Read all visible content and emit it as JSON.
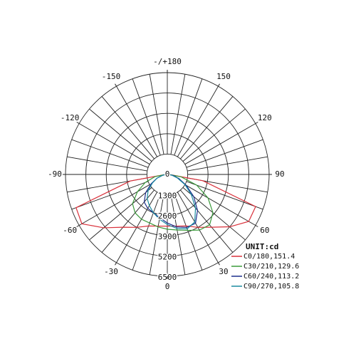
{
  "chart_data": {
    "type": "polar",
    "theta": [
      -90,
      -80,
      -70,
      -60,
      -50,
      -40,
      -30,
      -20,
      -10,
      0,
      10,
      20,
      30,
      40,
      50,
      60,
      70,
      80,
      90
    ],
    "series": [
      {
        "name": "C0/180,151.4",
        "color": "#d9303a",
        "values": [
          100,
          2400,
          6200,
          6300,
          5300,
          4400,
          3900,
          3500,
          3350,
          3300,
          3350,
          3500,
          3900,
          4400,
          5200,
          6000,
          6000,
          2300,
          100
        ]
      },
      {
        "name": "C30/210,129.6",
        "color": "#3a9a3a",
        "values": [
          100,
          800,
          1500,
          2200,
          2900,
          3200,
          3300,
          3300,
          3400,
          3500,
          3600,
          3800,
          4100,
          4200,
          3800,
          3000,
          2000,
          900,
          100
        ]
      },
      {
        "name": "C60/240,113.2",
        "color": "#1c2f8c",
        "values": [
          100,
          300,
          700,
          1200,
          1800,
          2300,
          2500,
          2600,
          2800,
          3100,
          3400,
          3600,
          3600,
          3000,
          2200,
          1400,
          800,
          400,
          100
        ]
      },
      {
        "name": "C90/270,105.8",
        "color": "#1a8aa0",
        "values": [
          100,
          300,
          700,
          1100,
          1600,
          2000,
          2300,
          2600,
          2900,
          3200,
          3500,
          3700,
          3500,
          2800,
          2000,
          1300,
          700,
          300,
          100
        ]
      }
    ],
    "rlim": [
      0,
      6500
    ],
    "rticks": [
      0,
      1300,
      2600,
      3900,
      5200,
      6500
    ],
    "thetaticks": [
      {
        "value": 180,
        "label": "-/+180"
      },
      150,
      120,
      90,
      60,
      30,
      0,
      -30,
      -60,
      -90,
      -120,
      -150
    ],
    "unit_label": "UNIT:cd"
  }
}
